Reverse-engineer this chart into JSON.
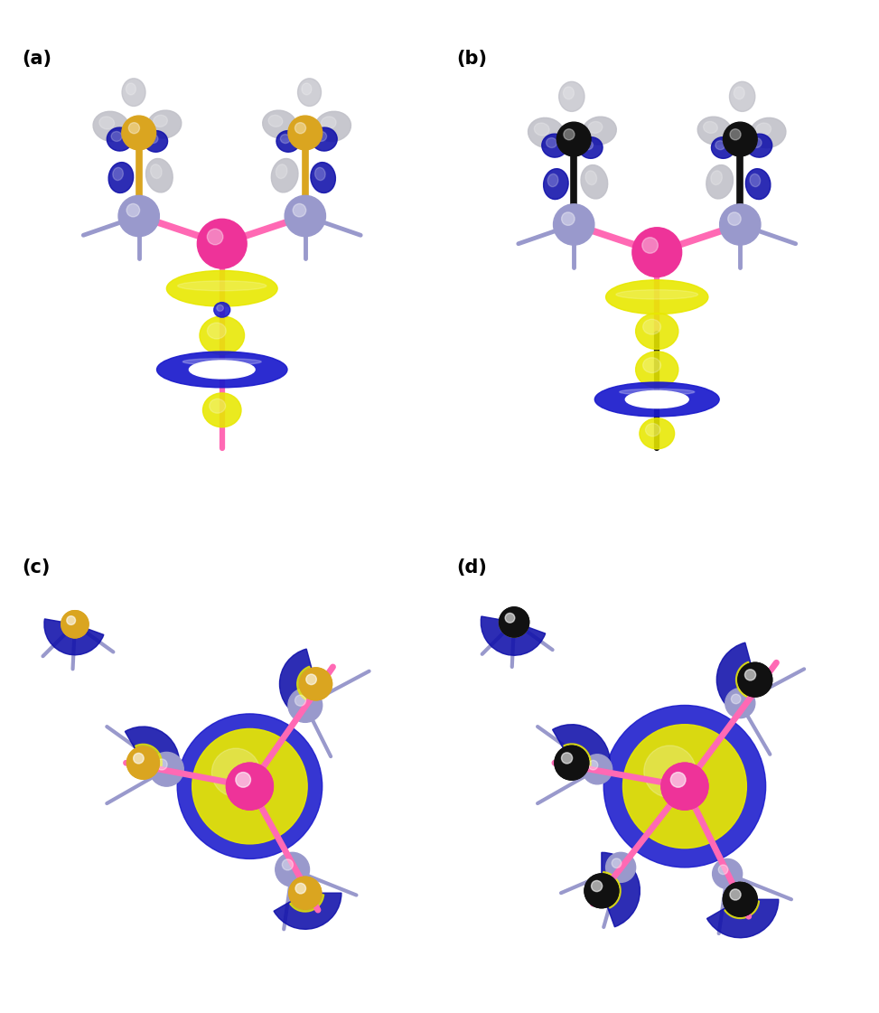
{
  "panels": [
    "(a)",
    "(b)",
    "(c)",
    "(d)"
  ],
  "panel_label_fontsize": 15,
  "panel_label_fontweight": "bold",
  "background_color": "#ffffff",
  "colors": {
    "pink_bond": "#FF69B4",
    "lavender_bond": "#9999CC",
    "lavender_atom": "#9999CC",
    "gold": "#DAA520",
    "yellow_orbital": "#E8E800",
    "blue_orbital": "#1A1ACC",
    "black_atom": "#111111",
    "dark_pink_atom": "#EE3399",
    "light_gray_orbital": "#C0C0C8",
    "navy_orbital": "#1010AA",
    "yellow_green": "#BBCC00"
  }
}
